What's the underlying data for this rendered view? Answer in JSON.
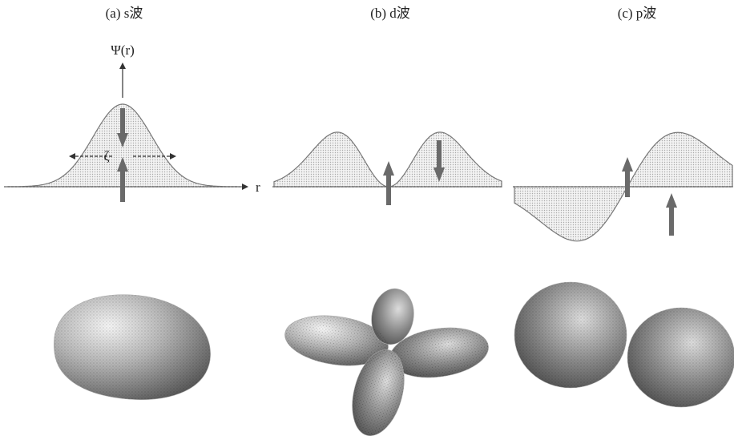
{
  "panels": [
    {
      "label": "(a) s波"
    },
    {
      "label": "(b) d波"
    },
    {
      "label": "(c) p波"
    }
  ],
  "axis": {
    "y_label": "Ψ(r)",
    "x_label": "r",
    "width_label": "ζ"
  }
}
